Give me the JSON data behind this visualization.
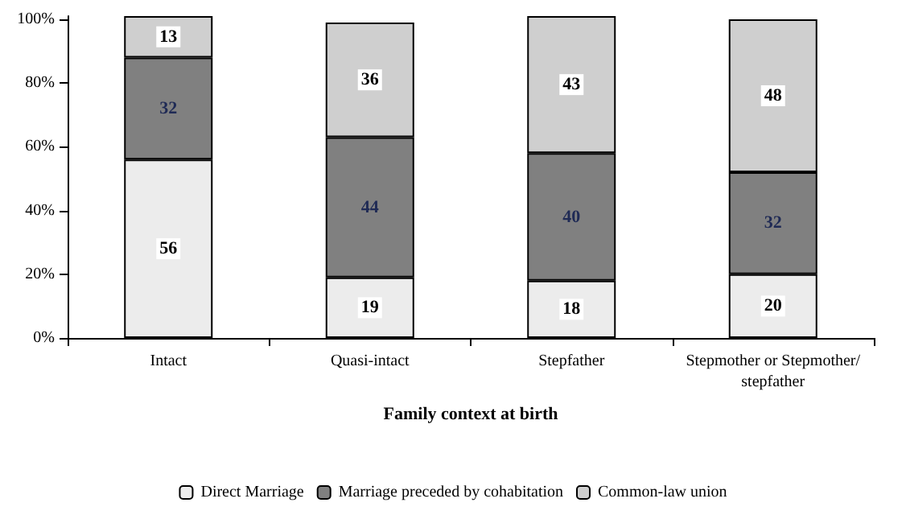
{
  "chart_data": {
    "type": "bar",
    "stacked": true,
    "xlabel": "Family context at birth",
    "categories": [
      "Intact",
      "Quasi-intact",
      "Stepfather",
      "Stepmother or Stepmother/stepfather"
    ],
    "series": [
      {
        "name": "Direct Marriage",
        "color": "#ececec",
        "values": [
          56,
          19,
          18,
          20
        ]
      },
      {
        "name": "Marriage preceded by cohabitation",
        "color": "#808080",
        "values": [
          32,
          44,
          40,
          32
        ]
      },
      {
        "name": "Common-law union",
        "color": "#cfcfcf",
        "values": [
          13,
          36,
          43,
          48
        ]
      }
    ],
    "ylim": [
      0,
      101
    ],
    "yticks": [
      {
        "value": 0,
        "label": "0%"
      },
      {
        "value": 20,
        "label": "20%"
      },
      {
        "value": 40,
        "label": "40%"
      },
      {
        "value": 60,
        "label": "60%"
      },
      {
        "value": 80,
        "label": "80%"
      },
      {
        "value": 100,
        "label": "100%"
      }
    ],
    "data_labels": true,
    "grid": false,
    "legend": "bottom"
  }
}
